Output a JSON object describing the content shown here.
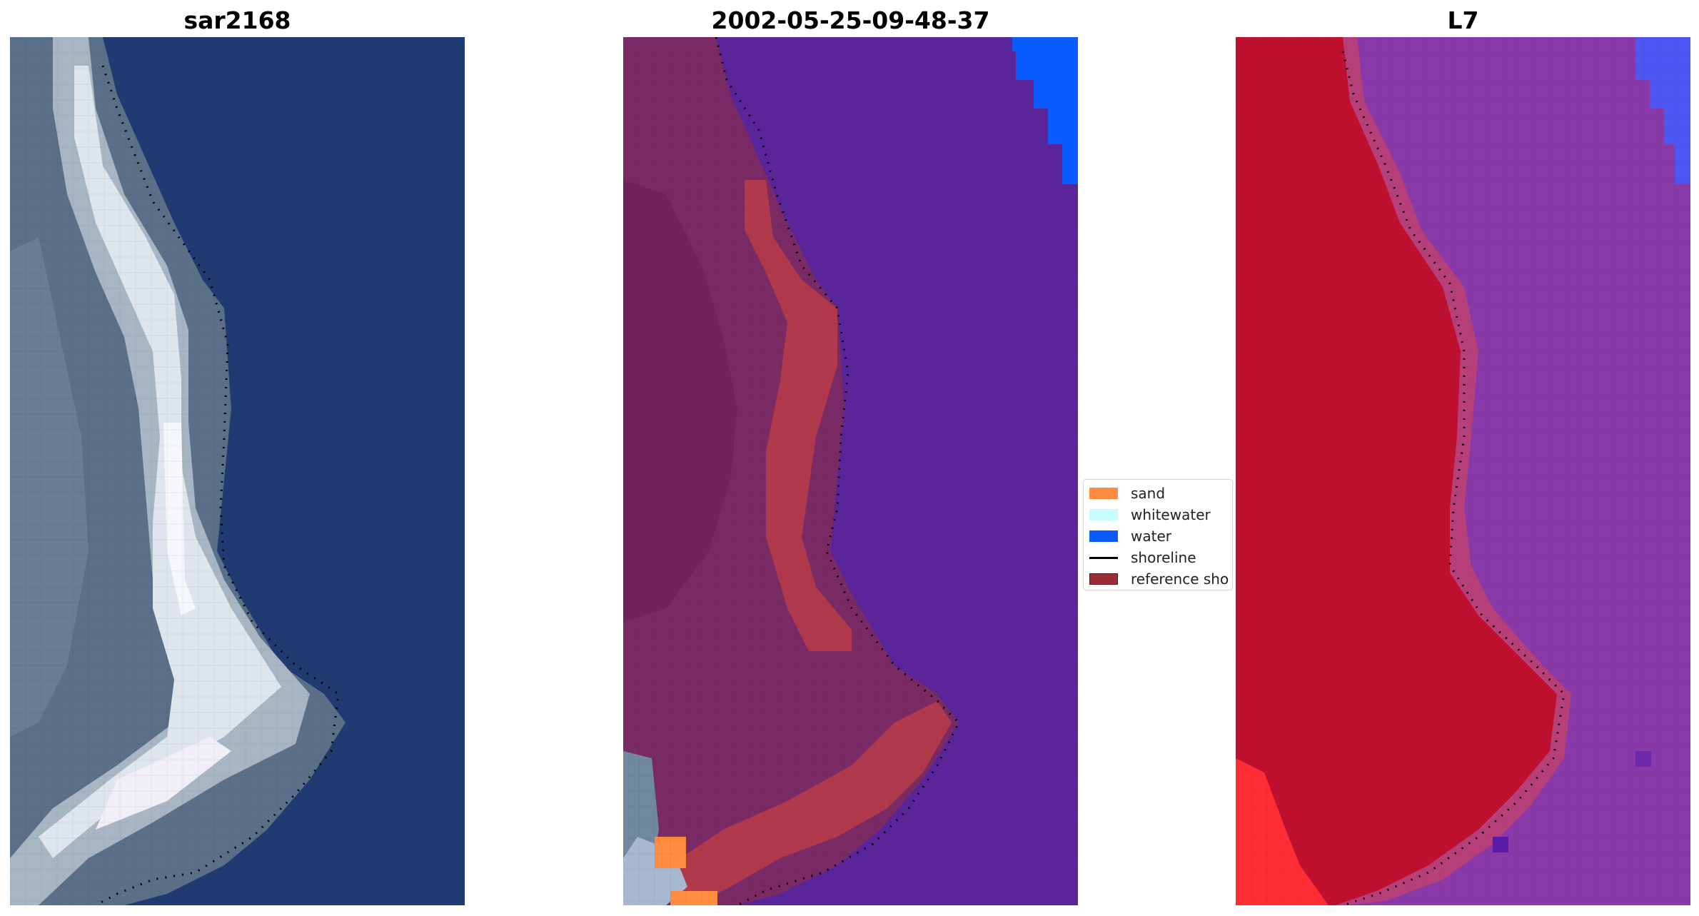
{
  "panels": [
    {
      "title": "sar2168"
    },
    {
      "title": "2002-05-25-09-48-37"
    },
    {
      "title": "L7"
    }
  ],
  "legend": {
    "items": [
      {
        "label": "sand",
        "color": "#ff8c3f",
        "kind": "patch"
      },
      {
        "label": "whitewater",
        "color": "#c8fbff",
        "kind": "patch"
      },
      {
        "label": "water",
        "color": "#0a5cff",
        "kind": "patch"
      },
      {
        "label": "shoreline",
        "color": "#000000",
        "kind": "line"
      },
      {
        "label": "reference sho",
        "color": "#9b2d37",
        "kind": "patch"
      }
    ]
  },
  "colors": {
    "rgb_water": "#1f3b72",
    "rgb_sand": "#e8ecf0",
    "class_water_bg": "#5a259a",
    "class_land": "#7a2a64",
    "class_sand_region": "#b03a4c",
    "false_land": "#c0102f",
    "false_water": "#8a3aa8"
  }
}
